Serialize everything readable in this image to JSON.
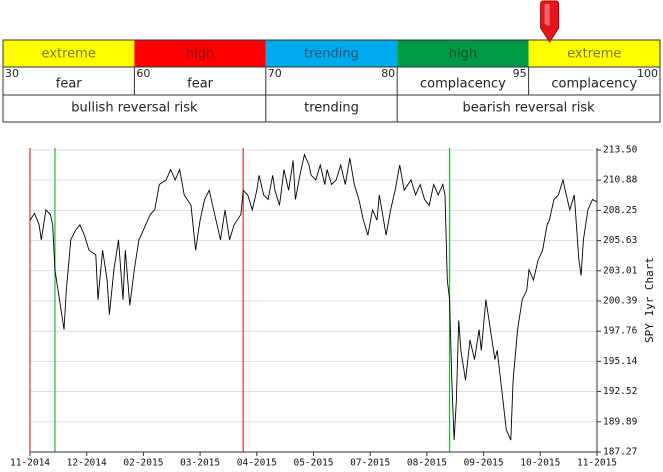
{
  "gauge": {
    "bounds": [
      30,
      60,
      70,
      80,
      95,
      100
    ],
    "bands": [
      {
        "label": "extreme",
        "color": "#ffff00"
      },
      {
        "label": "high",
        "color": "#ff0000"
      },
      {
        "label": "trending",
        "color": "#00aaee"
      },
      {
        "label": "high",
        "color": "#009944"
      },
      {
        "label": "extreme",
        "color": "#ffff00"
      }
    ],
    "sentiment": [
      "fear",
      "fear",
      null,
      "complacency",
      "complacency"
    ],
    "risk": [
      {
        "label": "bullish reversal risk",
        "from": 30,
        "to": 70
      },
      {
        "label": "trending",
        "from": 70,
        "to": 80
      },
      {
        "label": "bearish reversal risk",
        "from": 80,
        "to": 100
      }
    ],
    "indicator": 95.8,
    "indicator_color": "#e8141c"
  },
  "chart_data": {
    "type": "line",
    "y_label": "SPY 1yr Chart",
    "x": [
      0,
      2,
      4,
      5,
      7,
      9,
      10,
      11,
      13,
      15,
      16,
      18,
      20,
      22,
      24,
      26,
      29,
      30,
      32,
      34,
      35,
      37,
      39,
      41,
      42,
      44,
      46,
      48,
      49,
      51,
      53,
      55,
      57,
      60,
      62,
      64,
      66,
      68,
      71,
      73,
      75,
      77,
      79,
      82,
      84,
      86,
      88,
      90,
      93,
      94,
      96,
      98,
      100,
      101,
      103,
      105,
      107,
      108,
      110,
      112,
      114,
      116,
      117,
      119,
      121,
      123,
      124,
      126,
      128,
      130,
      131,
      133,
      135,
      137,
      139,
      141,
      143,
      145,
      147,
      149,
      151,
      153,
      154,
      157,
      159,
      161,
      163,
      165,
      168,
      170,
      172,
      174,
      176,
      178,
      180,
      182,
      183,
      184,
      185,
      186,
      187,
      188,
      189,
      190,
      192,
      194,
      196,
      198,
      199,
      201,
      203,
      205,
      206,
      208,
      210,
      212,
      213,
      215,
      217,
      219,
      220,
      222,
      224,
      226,
      228,
      229,
      231,
      233,
      235,
      236,
      238,
      240,
      242,
      243,
      244,
      246,
      248,
      250
    ],
    "series": [
      {
        "color": "#000000",
        "values": [
          207.4,
          208.0,
          207.0,
          205.7,
          208.3,
          207.9,
          207.0,
          203.1,
          200.5,
          197.9,
          201.3,
          205.7,
          206.5,
          207.0,
          206.1,
          204.8,
          204.4,
          200.5,
          204.8,
          202.2,
          199.2,
          203.1,
          205.7,
          200.5,
          204.8,
          200.0,
          203.1,
          205.7,
          206.1,
          207.0,
          207.9,
          208.3,
          210.5,
          210.9,
          211.8,
          210.9,
          211.8,
          209.6,
          208.7,
          204.8,
          207.4,
          209.2,
          210.0,
          207.4,
          205.7,
          208.3,
          205.7,
          207.0,
          207.9,
          210.0,
          209.6,
          208.3,
          210.0,
          211.3,
          209.6,
          209.2,
          211.3,
          210.0,
          208.7,
          211.8,
          210.0,
          212.6,
          209.2,
          211.3,
          213.1,
          212.2,
          211.3,
          210.9,
          212.2,
          210.5,
          211.8,
          210.5,
          210.9,
          212.2,
          210.5,
          212.8,
          210.5,
          209.2,
          207.4,
          206.1,
          208.3,
          207.4,
          209.6,
          206.1,
          208.3,
          210.0,
          212.2,
          210.0,
          210.9,
          209.6,
          210.5,
          209.2,
          208.7,
          210.5,
          209.6,
          210.5,
          209.6,
          202.2,
          200.5,
          193.5,
          188.3,
          191.8,
          198.7,
          196.1,
          193.5,
          197.0,
          195.3,
          197.9,
          196.1,
          200.5,
          197.9,
          195.3,
          196.1,
          192.7,
          189.2,
          188.3,
          193.5,
          197.9,
          200.5,
          201.3,
          203.1,
          202.2,
          203.9,
          204.8,
          207.0,
          207.4,
          209.2,
          209.6,
          210.9,
          210.0,
          208.3,
          209.6,
          203.9,
          202.6,
          205.7,
          208.3,
          209.2,
          209.0
        ]
      }
    ],
    "xlim": [
      0,
      250
    ],
    "xticks": [
      {
        "value": 0,
        "label": "11-2014"
      },
      {
        "value": 25,
        "label": "12-2014"
      },
      {
        "value": 50,
        "label": "02-2015"
      },
      {
        "value": 75,
        "label": "03-2015"
      },
      {
        "value": 100,
        "label": "04-2015"
      },
      {
        "value": 125,
        "label": "05-2015"
      },
      {
        "value": 150,
        "label": "07-2015"
      },
      {
        "value": 175,
        "label": "08-2015"
      },
      {
        "value": 200,
        "label": "09-2015"
      },
      {
        "value": 225,
        "label": "10-2015"
      },
      {
        "value": 250,
        "label": "11-2015"
      }
    ],
    "ylim": [
      187.27,
      213.5
    ],
    "yticks": [
      {
        "value": 213.5,
        "label": "213.50"
      },
      210.88,
      208.25,
      205.63,
      203.01,
      200.39,
      197.76,
      195.14,
      192.52,
      189.89,
      187.27
    ],
    "grid": true,
    "grid_color": "#dcdcf0",
    "vlines": [
      {
        "x": 0,
        "color": "#e03030"
      },
      {
        "x": 11,
        "color": "#22bb22"
      },
      {
        "x": 94,
        "color": "#e03030"
      },
      {
        "x": 185,
        "color": "#22bb22"
      }
    ]
  }
}
